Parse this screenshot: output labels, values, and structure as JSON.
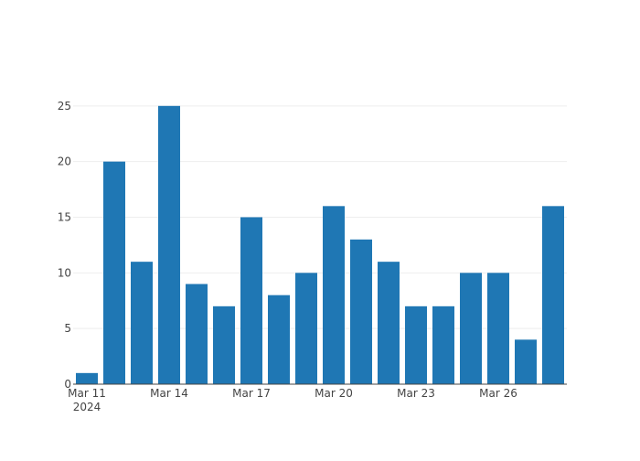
{
  "chart_data": {
    "type": "bar",
    "title": "",
    "xlabel": "",
    "ylabel": "",
    "x": [
      "2024-03-11",
      "2024-03-12",
      "2024-03-13",
      "2024-03-14",
      "2024-03-15",
      "2024-03-16",
      "2024-03-17",
      "2024-03-18",
      "2024-03-19",
      "2024-03-20",
      "2024-03-21",
      "2024-03-22",
      "2024-03-23",
      "2024-03-24",
      "2024-03-25",
      "2024-03-26",
      "2024-03-27",
      "2024-03-28"
    ],
    "values": [
      1,
      20,
      11,
      25,
      9,
      7,
      15,
      8,
      10,
      16,
      13,
      11,
      7,
      7,
      10,
      10,
      4,
      16
    ],
    "ylim": [
      0,
      26.3
    ],
    "yticks": [
      0,
      5,
      10,
      15,
      20,
      25
    ],
    "xticks": [
      {
        "date": "2024-03-11",
        "label": "Mar 11",
        "sublabel": "2024"
      },
      {
        "date": "2024-03-14",
        "label": "Mar 14",
        "sublabel": ""
      },
      {
        "date": "2024-03-17",
        "label": "Mar 17",
        "sublabel": ""
      },
      {
        "date": "2024-03-20",
        "label": "Mar 20",
        "sublabel": ""
      },
      {
        "date": "2024-03-23",
        "label": "Mar 23",
        "sublabel": ""
      },
      {
        "date": "2024-03-26",
        "label": "Mar 26",
        "sublabel": ""
      }
    ],
    "grid": true,
    "legend": "none",
    "bar_color": "#1f77b4",
    "grid_color": "#eeeeee",
    "axis_color": "#444444"
  }
}
